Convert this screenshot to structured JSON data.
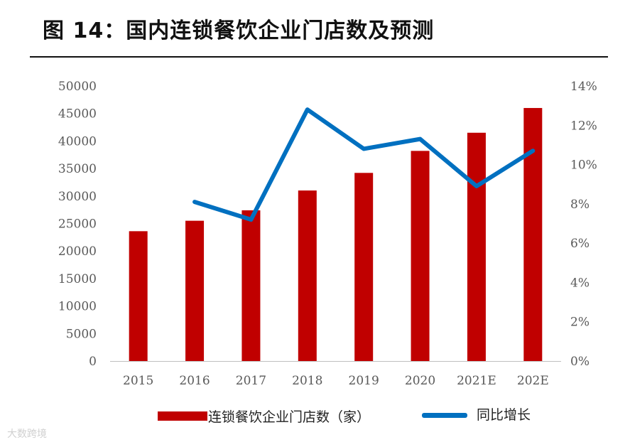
{
  "title": "图 14：国内连锁餐饮企业门店数及预测",
  "watermark": "大数跨境",
  "colors": {
    "bar": "#C00000",
    "line": "#0070C0"
  },
  "chart_data": {
    "type": "bar+line",
    "categories": [
      "2015",
      "2016",
      "2017",
      "2018",
      "2019",
      "2020",
      "2021E",
      "202E"
    ],
    "series": [
      {
        "name": "连锁餐饮企业门店数（家）",
        "type": "bar",
        "axis": "left",
        "values": [
          23600,
          25500,
          27400,
          31000,
          34200,
          38200,
          41500,
          46000
        ]
      },
      {
        "name": "同比增长",
        "type": "line",
        "axis": "right",
        "values": [
          null,
          8.1,
          7.2,
          12.8,
          10.8,
          11.3,
          8.9,
          10.7
        ]
      }
    ],
    "y_left": {
      "min": 0,
      "max": 50000,
      "step": 5000,
      "tick_labels": [
        "0",
        "5000",
        "10000",
        "15000",
        "20000",
        "25000",
        "30000",
        "35000",
        "40000",
        "45000",
        "50000"
      ]
    },
    "y_right": {
      "min": 0,
      "max": 14,
      "step": 2,
      "tick_labels": [
        "0%",
        "2%",
        "4%",
        "6%",
        "8%",
        "10%",
        "12%",
        "14%"
      ]
    },
    "grid": false,
    "legend": "bottom"
  }
}
